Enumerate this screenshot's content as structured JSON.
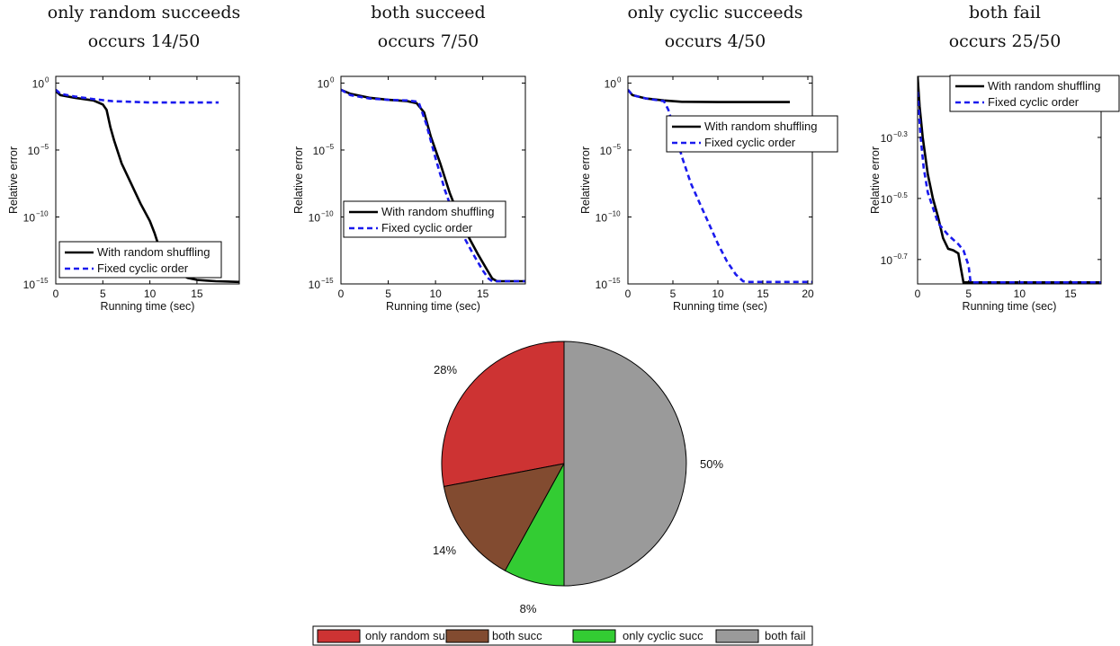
{
  "colors": {
    "random": "#000000",
    "cyclic": "#1a1aee",
    "only_random": "#cd3333",
    "both_succ": "#824b30",
    "only_cyclic": "#33cc33",
    "both_fail": "#9a9a9a"
  },
  "chart_data": [
    {
      "type": "line",
      "title": "only random succeeds",
      "subtitle": "occurs 14/50",
      "xlabel": "Running time (sec)",
      "ylabel": "Relative error",
      "yscale": "log",
      "xlim": [
        0,
        19.5
      ],
      "ylim_exp": [
        -15,
        0.5
      ],
      "xticks": [
        "0",
        "5",
        "10",
        "15"
      ],
      "xtick_values": [
        0,
        5,
        10,
        15
      ],
      "yticks": [
        {
          "base": "10",
          "exp": "0"
        },
        {
          "base": "10",
          "exp": "−5"
        },
        {
          "base": "10",
          "exp": "−10"
        },
        {
          "base": "10",
          "exp": "−15"
        }
      ],
      "ytick_values": [
        0,
        -5,
        -10,
        -15
      ],
      "legend": {
        "position": "bottom-right",
        "entries": [
          "With random shuffling",
          "Fixed cyclic order"
        ]
      },
      "series": [
        {
          "name": "With random shuffling",
          "style": "solid",
          "x": [
            0,
            0.5,
            2,
            4,
            5,
            5.4,
            5.8,
            6.2,
            7,
            8,
            9,
            10,
            10.5,
            11,
            12,
            13,
            14,
            15,
            16,
            17,
            19.5
          ],
          "y_exp": [
            -0.6,
            -0.9,
            -1.1,
            -1.3,
            -1.6,
            -2,
            -3.3,
            -4.3,
            -6,
            -7.5,
            -9,
            -10.3,
            -11.2,
            -12.3,
            -13.5,
            -14.2,
            -14.55,
            -14.7,
            -14.75,
            -14.8,
            -14.85
          ]
        },
        {
          "name": "Fixed cyclic order",
          "style": "dashed",
          "x": [
            0,
            0.5,
            2,
            4,
            6,
            8,
            10,
            14,
            17.3
          ],
          "y_exp": [
            -0.5,
            -0.8,
            -1,
            -1.2,
            -1.35,
            -1.4,
            -1.45,
            -1.45,
            -1.45
          ]
        }
      ]
    },
    {
      "type": "line",
      "title": "both succeed",
      "subtitle": "occurs 7/50",
      "xlabel": "Running time (sec)",
      "ylabel": "Relative error",
      "yscale": "log",
      "xlim": [
        0,
        19.5
      ],
      "ylim_exp": [
        -15,
        0.5
      ],
      "xticks": [
        "0",
        "5",
        "10",
        "15"
      ],
      "xtick_values": [
        0,
        5,
        10,
        15
      ],
      "yticks": [
        {
          "base": "10",
          "exp": "0"
        },
        {
          "base": "10",
          "exp": "−5"
        },
        {
          "base": "10",
          "exp": "−10"
        },
        {
          "base": "10",
          "exp": "−15"
        }
      ],
      "ytick_values": [
        0,
        -5,
        -10,
        -15
      ],
      "legend": {
        "position": "lower-left",
        "entries": [
          "With random shuffling",
          "Fixed cyclic order"
        ]
      },
      "series": [
        {
          "name": "With random shuffling",
          "style": "solid",
          "x": [
            0,
            1,
            3,
            5,
            7,
            8,
            8.8,
            9.5,
            10.5,
            11.5,
            12.5,
            13.5,
            14.5,
            15.5,
            16,
            16.5,
            19.5
          ],
          "y_exp": [
            -0.5,
            -0.8,
            -1.1,
            -1.25,
            -1.35,
            -1.5,
            -2.2,
            -4,
            -6,
            -8.2,
            -10,
            -11.5,
            -12.8,
            -14,
            -14.6,
            -14.8,
            -14.8
          ]
        },
        {
          "name": "Fixed cyclic order",
          "style": "dashed",
          "x": [
            0,
            1,
            3,
            5,
            7,
            8.2,
            9,
            10,
            11,
            12,
            13,
            14,
            15,
            15.6,
            16,
            19.5
          ],
          "y_exp": [
            -0.5,
            -0.9,
            -1.15,
            -1.25,
            -1.3,
            -1.4,
            -3,
            -5.6,
            -8,
            -10,
            -11.5,
            -12.8,
            -14,
            -14.6,
            -14.8,
            -14.8
          ]
        }
      ]
    },
    {
      "type": "line",
      "title": "only cyclic succeeds",
      "subtitle": "occurs 4/50",
      "xlabel": "Running time (sec)",
      "ylabel": "Relative error",
      "yscale": "log",
      "xlim": [
        0,
        20.5
      ],
      "ylim_exp": [
        -15,
        0.5
      ],
      "xticks": [
        "0",
        "5",
        "10",
        "15",
        "20"
      ],
      "xtick_values": [
        0,
        5,
        10,
        15,
        20
      ],
      "yticks": [
        {
          "base": "10",
          "exp": "0"
        },
        {
          "base": "10",
          "exp": "−5"
        },
        {
          "base": "10",
          "exp": "−10"
        },
        {
          "base": "10",
          "exp": "−15"
        }
      ],
      "ytick_values": [
        0,
        -5,
        -10,
        -15
      ],
      "legend": {
        "position": "upper-right",
        "entries": [
          "With random shuffling",
          "Fixed cyclic order"
        ]
      },
      "series": [
        {
          "name": "With random shuffling",
          "style": "solid",
          "x": [
            0,
            0.5,
            2,
            4,
            6,
            10,
            14,
            18
          ],
          "y_exp": [
            -0.5,
            -0.9,
            -1.15,
            -1.3,
            -1.4,
            -1.42,
            -1.42,
            -1.42
          ]
        },
        {
          "name": "Fixed cyclic order",
          "style": "dashed",
          "x": [
            0,
            0.5,
            2,
            4,
            4.5,
            5.2,
            6,
            7,
            8,
            9,
            10,
            11,
            12,
            12.8,
            13.3,
            20.5
          ],
          "y_exp": [
            -0.5,
            -0.9,
            -1.15,
            -1.35,
            -2,
            -3.6,
            -5.5,
            -7.5,
            -9,
            -10.5,
            -12,
            -13.3,
            -14.3,
            -14.8,
            -14.85,
            -14.85
          ]
        }
      ]
    },
    {
      "type": "line",
      "title": "both fail",
      "subtitle": "occurs 25/50",
      "xlabel": "Running time (sec)",
      "ylabel": "Relative error",
      "yscale": "log",
      "xlim": [
        0,
        18
      ],
      "ylim_exp": [
        -0.78,
        -0.1
      ],
      "xticks": [
        "0",
        "5",
        "10",
        "15"
      ],
      "xtick_values": [
        0,
        5,
        10,
        15
      ],
      "yticks": [
        {
          "base": "10",
          "exp": "−0.3"
        },
        {
          "base": "10",
          "exp": "−0.5"
        },
        {
          "base": "10",
          "exp": "−0.7"
        }
      ],
      "ytick_values": [
        -0.3,
        -0.5,
        -0.7
      ],
      "legend": {
        "position": "top-right",
        "entries": [
          "With random shuffling",
          "Fixed cyclic order"
        ]
      },
      "series": [
        {
          "name": "With random shuffling",
          "style": "solid",
          "x": [
            0,
            0.2,
            0.5,
            1,
            1.5,
            2,
            2.5,
            3,
            3.5,
            4,
            4.2,
            4.5,
            18
          ],
          "y_exp": [
            -0.1,
            -0.2,
            -0.3,
            -0.42,
            -0.5,
            -0.56,
            -0.63,
            -0.665,
            -0.67,
            -0.68,
            -0.72,
            -0.775,
            -0.775
          ]
        },
        {
          "name": "Fixed cyclic order",
          "style": "dashed",
          "x": [
            0,
            0.3,
            0.6,
            1,
            1.5,
            2,
            2.5,
            3,
            4,
            4.5,
            5,
            5.2,
            18
          ],
          "y_exp": [
            -0.15,
            -0.3,
            -0.4,
            -0.48,
            -0.53,
            -0.58,
            -0.6,
            -0.62,
            -0.65,
            -0.67,
            -0.72,
            -0.775,
            -0.775
          ]
        }
      ]
    },
    {
      "type": "pie",
      "slices": [
        {
          "label": "only random succ",
          "value": 28,
          "pct": "28%"
        },
        {
          "label": "both succ",
          "value": 14,
          "pct": "14%"
        },
        {
          "label": "only cyclic succ",
          "value": 8,
          "pct": "8%"
        },
        {
          "label": "both fail",
          "value": 50,
          "pct": "50%"
        }
      ],
      "legend": {
        "position": "bottom",
        "entries": [
          "only random succ",
          "both succ",
          "only cyclic succ",
          "both fail"
        ]
      }
    }
  ]
}
